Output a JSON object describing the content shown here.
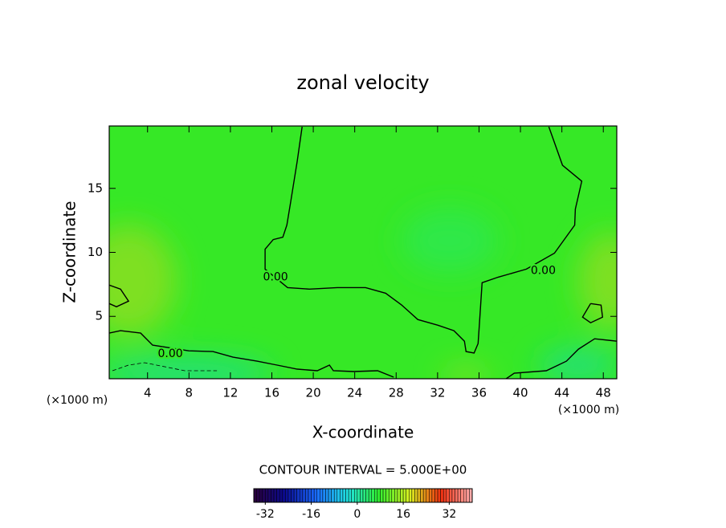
{
  "chart_data": {
    "type": "contour",
    "title": "zonal velocity",
    "xlabel": "X-coordinate",
    "ylabel": "Z-coordinate",
    "x_unit": "(×1000 m)",
    "xlim": [
      0.3,
      49.3
    ],
    "ylim": [
      0.125,
      19.875
    ],
    "xticks": [
      4,
      8,
      12,
      16,
      20,
      24,
      28,
      32,
      36,
      40,
      44,
      48
    ],
    "yticks": [
      5,
      10,
      15
    ],
    "contours": [
      {
        "level": 0,
        "x": [
          18.92,
          18.45,
          17.83,
          17.45,
          17.06,
          16.13,
          15.35,
          15.35,
          17.52,
          19.62,
          22.33,
          25.05,
          26.99,
          28.54,
          30.09,
          32.03,
          33.58,
          34.59,
          34.75,
          35.52,
          35.91,
          36.06,
          36.3,
          37.85,
          40.57,
          43.28,
          45.24,
          45.3,
          45.92,
          44.06,
          42.74
        ],
        "y": [
          19.81,
          17.13,
          14.0,
          12.13,
          11.19,
          11.0,
          10.25,
          8.69,
          7.25,
          7.13,
          7.25,
          7.25,
          6.81,
          5.88,
          4.75,
          4.31,
          3.88,
          3.06,
          2.25,
          2.13,
          2.88,
          4.63,
          7.63,
          8.06,
          8.69,
          9.94,
          12.13,
          13.38,
          15.56,
          16.81,
          19.81
        ]
      },
      {
        "level": 0,
        "x": [
          0.3,
          1.39,
          3.33,
          4.49,
          7.98,
          10.31,
          12.25,
          14.57,
          16.51,
          18.45,
          20.39,
          21.56,
          21.94,
          23.88,
          26.21,
          27.76
        ],
        "y": [
          3.69,
          3.88,
          3.69,
          2.75,
          2.31,
          2.25,
          1.81,
          1.5,
          1.19,
          0.88,
          0.75,
          1.19,
          0.75,
          0.69,
          0.75,
          0.25
        ]
      },
      {
        "level": 0,
        "x": [
          49.33,
          47.16,
          45.6,
          44.44,
          42.5,
          39.4,
          38.62
        ],
        "y": [
          3.06,
          3.25,
          2.44,
          1.5,
          0.75,
          0.56,
          0.125
        ]
      },
      {
        "level": 0,
        "x": [
          0.3,
          1.39,
          2.17,
          1.0,
          0.3
        ],
        "y": [
          7.44,
          7.13,
          6.19,
          5.75,
          6.0
        ]
      },
      {
        "level": 0,
        "x": [
          46.77,
          47.78,
          47.93,
          46.77,
          46.0,
          46.77
        ],
        "y": [
          6.0,
          5.88,
          4.94,
          4.5,
          4.94,
          6.0
        ]
      },
      {
        "level": -5,
        "x": [
          0.61,
          2.16,
          3.71,
          5.26,
          7.59,
          10.7
        ],
        "y": [
          0.75,
          1.19,
          1.38,
          1.13,
          0.75,
          0.75
        ]
      }
    ],
    "contour_labels": [
      {
        "text": "0.00",
        "x": 16.36,
        "y": 8.06
      },
      {
        "text": "0.00",
        "x": 6.2,
        "y": 2.06
      },
      {
        "text": "0.00",
        "x": 42.2,
        "y": 8.56
      }
    ],
    "contour_interval_text": "CONTOUR INTERVAL = 5.000E+00",
    "colorbar": {
      "lim": [
        -36,
        40
      ],
      "ticks": [
        -32,
        -16,
        0,
        16,
        32
      ],
      "colors": [
        "#2a003a",
        "#0a0a90",
        "#1a6aff",
        "#20e0e0",
        "#30f030",
        "#d8f020",
        "#f03010",
        "#ffb0b0"
      ]
    }
  }
}
